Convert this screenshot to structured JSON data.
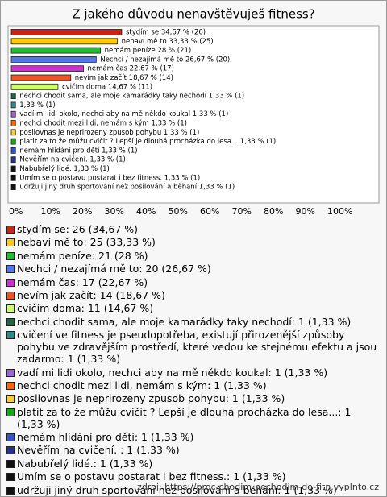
{
  "chart_data": {
    "type": "bar",
    "orientation": "horizontal",
    "title": "Z jakého důvodu nenavštěvuješ fitness?",
    "categories": [
      "stydím se",
      "nebaví mě to",
      "nemám peníze",
      "Nechci / nezajímá mě to",
      "nemám čas",
      "nevím jak začít",
      "cvičím doma",
      "nechci chodit sama, ale moje kamarádky taky nechodí",
      "cvičení ve fitness je pseudopotřeba, existují přirozenější způsoby pohybu ve zdravějším prostředí, které vedou ke stejnému efektu a jsou zadarmo",
      "vadí mi lidi okolo, nechci aby na mě někdo koukal",
      "nechci chodit mezi lidi, nemám s kým",
      "posilovnas je neprirozeny zpusob pohybu",
      "platit za to že můžu cvičit ? Lepší je dlouhá procházka do lesa...",
      "nemám hlídání pro děti",
      "Nevěřím na cvičení. ",
      "Nabubřelý lidé.",
      "Umím se o postavu postarat i bez fitness.",
      "udržuji jiný druh sportování než posilování a běhání"
    ],
    "values": [
      34.67,
      33.33,
      28,
      26.67,
      22.67,
      18.67,
      14.67,
      1.33,
      1.33,
      1.33,
      1.33,
      1.33,
      1.33,
      1.33,
      1.33,
      1.33,
      1.33,
      1.33
    ],
    "value_labels": [
      "stydím se 34,67 % (26)",
      "nebaví mě to 33,33 % (25)",
      "nemám peníze 28 % (21)",
      "Nechci / nezajímá mě to 26,67 % (20)",
      "nemám čas 22,67 % (17)",
      "nevím jak začít 18,67 % (14)",
      "cvičím doma 14,67 % (11)",
      "nechci chodit sama, ale moje kamarádky taky nechodí 1,33 % (1)",
      "1,33 % (1)",
      "vadí mi lidi okolo, nechci aby na mě někdo koukal 1,33 % (1)",
      "nechci chodit mezi lidi, nemám s kým 1,33 % (1)",
      "posilovnas je neprirozeny zpusob pohybu 1,33 % (1)",
      "platit za to že můžu cvičit ? Lepší je dlouhá procházka do lesa... 1,33 % (1)",
      "nemám hlídání pro děti 1,33 % (1)",
      "Nevěřím na cvičení.  1,33 % (1)",
      "Nabubřelý lidé.  1,33 % (1)",
      "Umím se o postavu postarat i bez fitness. 1,33 % (1)",
      "udržuji jiný druh sportování než posilování a běhání 1,33 % (1)"
    ],
    "legend_labels": [
      "stydím se: 26 (34,67 %)",
      "nebaví mě to: 25 (33,33 %)",
      "nemám peníze: 21 (28 %)",
      "Nechci / nezajímá mě to: 20 (26,67 %)",
      "nemám čas: 17 (22,67 %)",
      "nevím jak začít: 14 (18,67 %)",
      "cvičím doma: 11 (14,67 %)",
      "nechci chodit sama, ale moje kamarádky taky nechodí: 1 (1,33 %)",
      "cvičení ve fitness je pseudopotřeba, existují přirozenější způsoby pohybu ve zdravějším prostředí, které vedou ke stejnému efektu a jsou zadarmo: 1 (1,33 %)",
      "vadí mi lidi okolo, nechci aby na mě někdo koukal: 1 (1,33 %)",
      "nechci chodit mezi lidi, nemám s kým: 1 (1,33 %)",
      "posilovnas je neprirozeny zpusob pohybu: 1 (1,33 %)",
      "platit za to že můžu cvičit ? Lepší je dlouhá procházka do lesa...: 1 (1,33 %)",
      "nemám hlídání pro děti: 1 (1,33 %)",
      "Nevěřím na cvičení. : 1 (1,33 %)",
      "Nabubřelý lidé.: 1 (1,33 %)",
      "Umím se o postavu postarat i bez fitness.: 1 (1,33 %)",
      "udržuji jiný druh sportování než posilování a běhání: 1 (1,33 %)"
    ],
    "colors": [
      "#cc2211",
      "#ffcc00",
      "#22bb33",
      "#5577ee",
      "#cc33cc",
      "#ee5522",
      "#ccff66",
      "#226644",
      "#338888",
      "#9966cc",
      "#ff6600",
      "#ffcc33",
      "#11aa11",
      "#3355cc",
      "#223388",
      "#111111",
      "#111111",
      "#111111"
    ],
    "xlim": [
      0,
      100
    ],
    "xticks": [
      {
        "value": 0,
        "label": "0%"
      },
      {
        "value": 10,
        "label": "10%"
      },
      {
        "value": 20,
        "label": "20%"
      },
      {
        "value": 30,
        "label": "30%"
      },
      {
        "value": 40,
        "label": "40%"
      },
      {
        "value": 50,
        "label": "50%"
      },
      {
        "value": 60,
        "label": "60%"
      },
      {
        "value": 70,
        "label": "70%"
      },
      {
        "value": 80,
        "label": "80%"
      },
      {
        "value": 90,
        "label": "90%"
      },
      {
        "value": 100,
        "label": "100%"
      }
    ],
    "source": "zdroj: https://proc-chodim-nechodim-do-fitn.vyplnto.cz"
  }
}
